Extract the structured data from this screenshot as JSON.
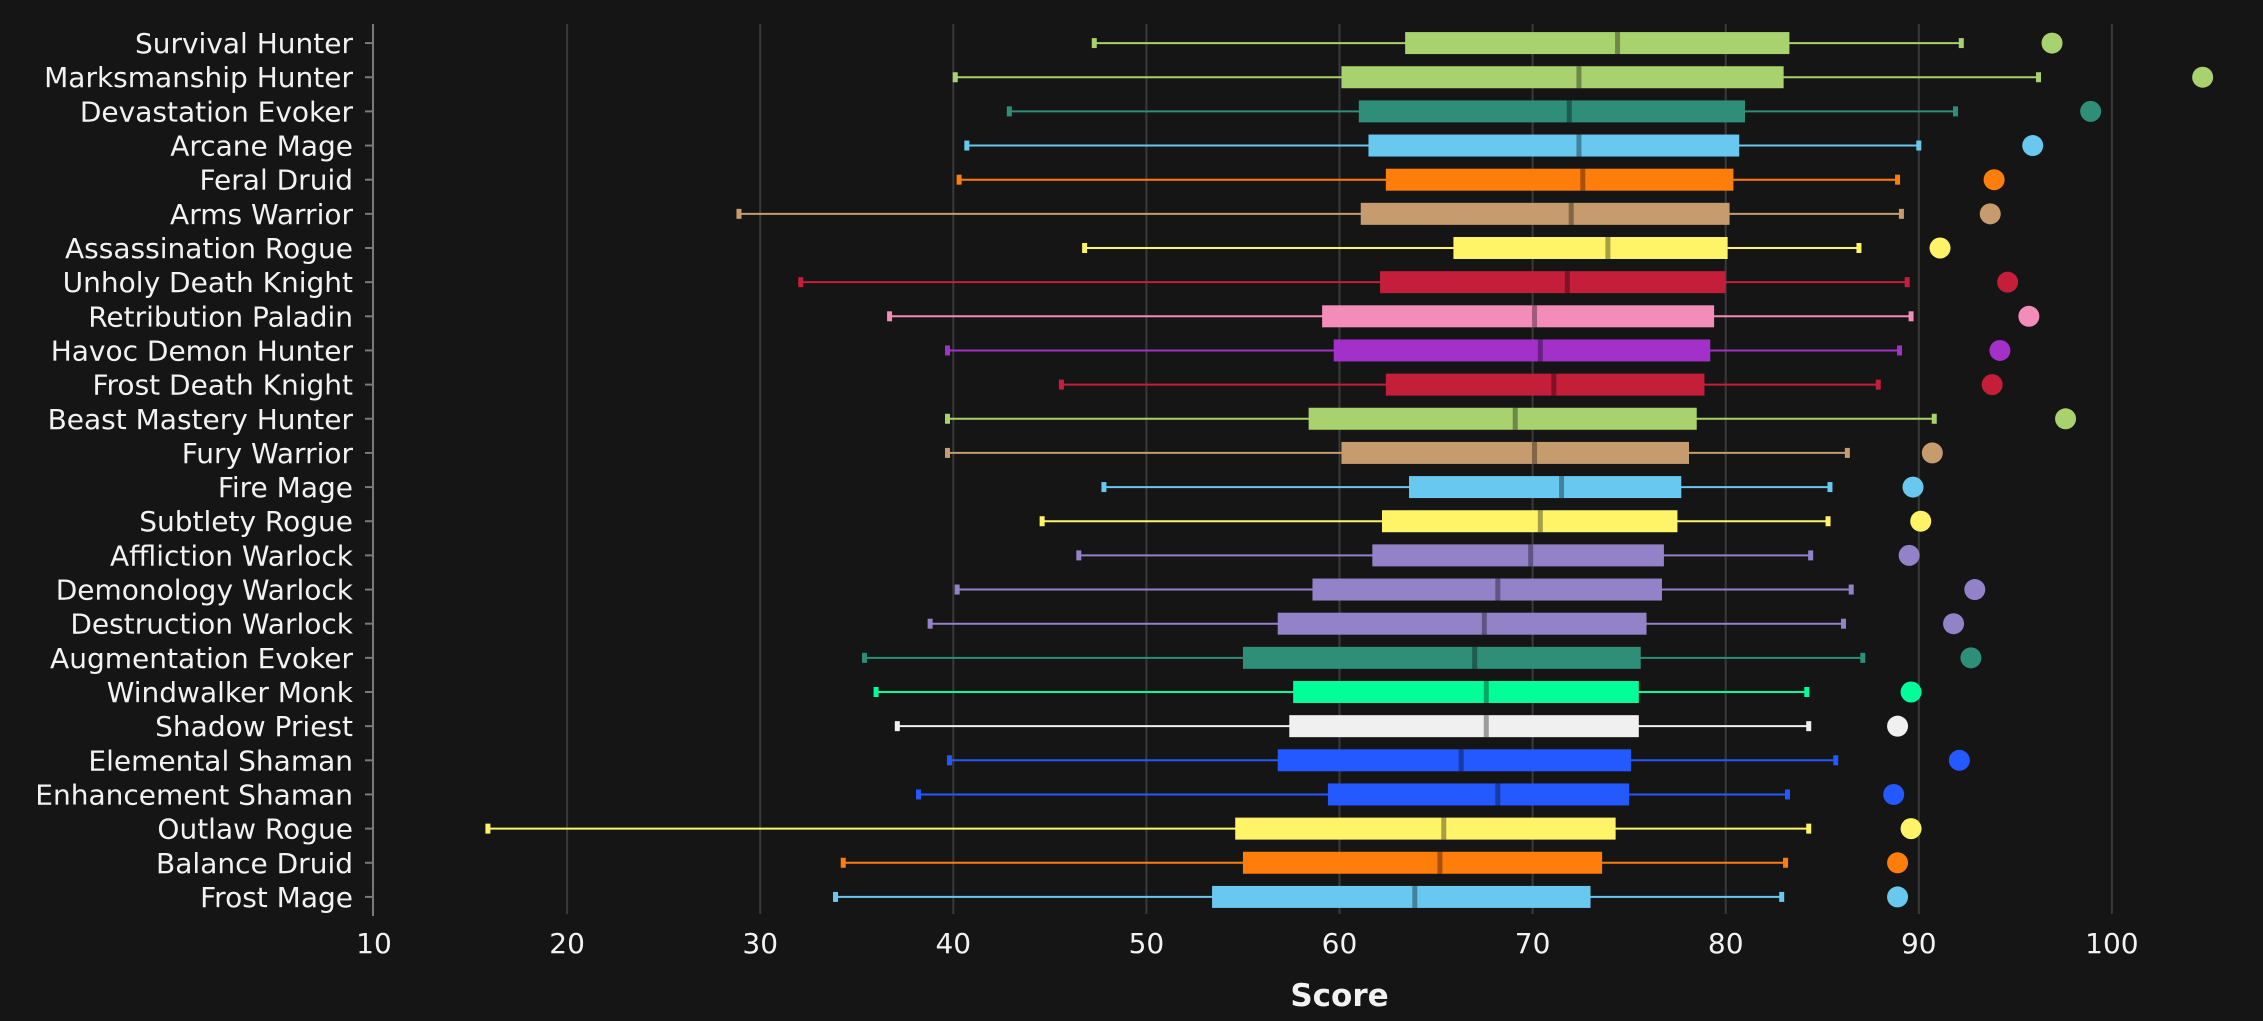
{
  "chart_data": {
    "type": "boxplot",
    "xlabel": "Score",
    "xlim": [
      10,
      105
    ],
    "xticks": [
      10,
      20,
      30,
      40,
      50,
      60,
      70,
      80,
      90,
      100
    ],
    "grid": "vertical",
    "background": "#151515",
    "rows": [
      {
        "name": "Survival Hunter",
        "color": "#a8d26e",
        "min": 47.3,
        "q1": 63.4,
        "median": 74.4,
        "q3": 83.3,
        "max": 92.2,
        "outlier": 96.9
      },
      {
        "name": "Marksmanship Hunter",
        "color": "#a8d26e",
        "min": 40.1,
        "q1": 60.1,
        "median": 72.4,
        "q3": 83.0,
        "max": 96.2,
        "outlier": 104.7
      },
      {
        "name": "Devastation Evoker",
        "color": "#2e8e78",
        "min": 42.9,
        "q1": 61.0,
        "median": 71.9,
        "q3": 81.0,
        "max": 91.9,
        "outlier": 98.9
      },
      {
        "name": "Arcane Mage",
        "color": "#68c8ef",
        "min": 40.7,
        "q1": 61.5,
        "median": 72.4,
        "q3": 80.7,
        "max": 90.0,
        "outlier": 95.9
      },
      {
        "name": "Feral Druid",
        "color": "#ff7d0a",
        "min": 40.3,
        "q1": 62.4,
        "median": 72.6,
        "q3": 80.4,
        "max": 88.9,
        "outlier": 93.9
      },
      {
        "name": "Arms Warrior",
        "color": "#c69b6d",
        "min": 28.9,
        "q1": 61.1,
        "median": 72.0,
        "q3": 80.2,
        "max": 89.1,
        "outlier": 93.7
      },
      {
        "name": "Assassination Rogue",
        "color": "#fff468",
        "min": 46.8,
        "q1": 65.9,
        "median": 73.9,
        "q3": 80.1,
        "max": 86.9,
        "outlier": 91.1
      },
      {
        "name": "Unholy Death Knight",
        "color": "#c41e3a",
        "min": 32.1,
        "q1": 62.1,
        "median": 71.8,
        "q3": 80.0,
        "max": 89.4,
        "outlier": 94.6
      },
      {
        "name": "Retribution Paladin",
        "color": "#f48cba",
        "min": 36.7,
        "q1": 59.1,
        "median": 70.1,
        "q3": 79.4,
        "max": 89.6,
        "outlier": 95.7
      },
      {
        "name": "Havoc Demon Hunter",
        "color": "#a330c9",
        "min": 39.7,
        "q1": 59.7,
        "median": 70.4,
        "q3": 79.2,
        "max": 89.0,
        "outlier": 94.2
      },
      {
        "name": "Frost Death Knight",
        "color": "#c41e3a",
        "min": 45.6,
        "q1": 62.4,
        "median": 71.1,
        "q3": 78.9,
        "max": 87.9,
        "outlier": 93.8
      },
      {
        "name": "Beast Mastery Hunter",
        "color": "#a8d26e",
        "min": 39.7,
        "q1": 58.4,
        "median": 69.1,
        "q3": 78.5,
        "max": 90.8,
        "outlier": 97.6
      },
      {
        "name": "Fury Warrior",
        "color": "#c69b6d",
        "min": 39.7,
        "q1": 60.1,
        "median": 70.1,
        "q3": 78.1,
        "max": 86.3,
        "outlier": 90.7
      },
      {
        "name": "Fire Mage",
        "color": "#68c8ef",
        "min": 47.8,
        "q1": 63.6,
        "median": 71.5,
        "q3": 77.7,
        "max": 85.4,
        "outlier": 89.7
      },
      {
        "name": "Subtlety Rogue",
        "color": "#fff468",
        "min": 44.6,
        "q1": 62.2,
        "median": 70.4,
        "q3": 77.5,
        "max": 85.3,
        "outlier": 90.1
      },
      {
        "name": "Affliction Warlock",
        "color": "#9482c9",
        "min": 46.5,
        "q1": 61.7,
        "median": 69.9,
        "q3": 76.8,
        "max": 84.4,
        "outlier": 89.5
      },
      {
        "name": "Demonology Warlock",
        "color": "#9482c9",
        "min": 40.2,
        "q1": 58.6,
        "median": 68.2,
        "q3": 76.7,
        "max": 86.5,
        "outlier": 92.9
      },
      {
        "name": "Destruction Warlock",
        "color": "#9482c9",
        "min": 38.8,
        "q1": 56.8,
        "median": 67.5,
        "q3": 75.9,
        "max": 86.1,
        "outlier": 91.8
      },
      {
        "name": "Augmentation Evoker",
        "color": "#2e8e78",
        "min": 35.4,
        "q1": 55.0,
        "median": 67.0,
        "q3": 75.6,
        "max": 87.1,
        "outlier": 92.7
      },
      {
        "name": "Windwalker Monk",
        "color": "#00ff98",
        "min": 36.0,
        "q1": 57.6,
        "median": 67.6,
        "q3": 75.5,
        "max": 84.2,
        "outlier": 89.6
      },
      {
        "name": "Shadow Priest",
        "color": "#f0f0f0",
        "min": 37.1,
        "q1": 57.4,
        "median": 67.6,
        "q3": 75.5,
        "max": 84.3,
        "outlier": 88.9
      },
      {
        "name": "Elemental Shaman",
        "color": "#2459ff",
        "min": 39.8,
        "q1": 56.8,
        "median": 66.3,
        "q3": 75.1,
        "max": 85.7,
        "outlier": 92.1
      },
      {
        "name": "Enhancement Shaman",
        "color": "#2459ff",
        "min": 38.2,
        "q1": 59.4,
        "median": 68.2,
        "q3": 75.0,
        "max": 83.2,
        "outlier": 88.7
      },
      {
        "name": "Outlaw Rogue",
        "color": "#fff468",
        "min": 15.9,
        "q1": 54.6,
        "median": 65.4,
        "q3": 74.3,
        "max": 84.3,
        "outlier": 89.6
      },
      {
        "name": "Balance Druid",
        "color": "#ff7d0a",
        "min": 34.3,
        "q1": 55.0,
        "median": 65.2,
        "q3": 73.6,
        "max": 83.1,
        "outlier": 88.9
      },
      {
        "name": "Frost Mage",
        "color": "#68c8ef",
        "min": 33.9,
        "q1": 53.4,
        "median": 63.9,
        "q3": 73.0,
        "max": 82.9,
        "outlier": 88.9
      }
    ]
  }
}
